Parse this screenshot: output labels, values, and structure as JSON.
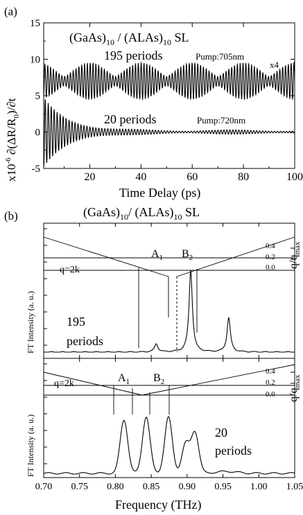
{
  "chart_data": [
    {
      "panel": "(a)",
      "type": "line",
      "title": "(GaAs)10 / (ALAs)10 SL",
      "xlabel": "Time Delay (ps)",
      "ylabel": "x10^-6 ∂(ΔR/R0)/∂t",
      "xlim": [
        2,
        100
      ],
      "ylim": [
        -5,
        15
      ],
      "xticks": [
        20,
        40,
        60,
        80,
        100
      ],
      "yticks": [
        -5,
        0,
        5,
        10,
        15
      ],
      "series": [
        {
          "name": "195 periods",
          "annotation": "Pump:705nm",
          "scale_note": "x4",
          "offset": 7,
          "description": "oscillation around +7 with beating envelope maxima near 20, 40, 60, 80 ps",
          "envelope_maxima_ps": [
            4,
            20,
            40,
            60,
            80,
            100
          ],
          "amplitude_max": 2.5
        },
        {
          "name": "20 periods",
          "annotation": "Pump:720nm",
          "offset": 0,
          "description": "decaying oscillation around 0, amplitude ~4.5 at t=2 ps decaying to ~0.2 after 60 ps",
          "amplitude_start": 4.5,
          "amplitude_end": 0.2
        }
      ]
    },
    {
      "panel": "(b)",
      "type": "line",
      "title": "(GaAs)10/ (ALAs)10 SL",
      "xlabel": "Frequency (THz)",
      "ylabel": "FT Intensity (a. u.)",
      "y2label": "q/qmax",
      "xlim": [
        0.7,
        1.05
      ],
      "xticks": [
        0.7,
        0.75,
        0.8,
        0.85,
        0.9,
        0.95,
        1.0,
        1.05
      ],
      "y2ticks": [
        0.0,
        0.2,
        0.4
      ],
      "labels": [
        "A1",
        "B2",
        "q=2k"
      ],
      "series": [
        {
          "name": "195 periods",
          "peaks_THz": [
            {
              "x": 0.857,
              "height": 0.1
            },
            {
              "x": 0.905,
              "height": 1.0
            },
            {
              "x": 0.958,
              "height": 0.42
            }
          ],
          "marker_dashed_THz": 0.915
        },
        {
          "name": "20 periods",
          "peaks_THz": [
            {
              "x": 0.812,
              "height": 0.82
            },
            {
              "x": 0.843,
              "height": 0.87
            },
            {
              "x": 0.874,
              "height": 0.86
            },
            {
              "x": 0.898,
              "height": 0.45
            },
            {
              "x": 0.911,
              "height": 0.63
            }
          ]
        }
      ]
    }
  ],
  "text": {
    "panel_a": "(a)",
    "panel_b": "(b)",
    "title_a": "(GaAs)",
    "title_a_sub1": "10",
    "title_a_mid": " / (ALAs)",
    "title_a_sub2": "10",
    "title_a_end": " SL",
    "s195": "195 periods",
    "pump1": "Pump:705nm",
    "x4": "x4",
    "s20": "20 periods",
    "pump2": "Pump:720nm",
    "xlabel_a": "Time Delay (ps)",
    "ylabel_a": "x10",
    "ylabel_a_exp": "-6",
    "ylabel_a_rest": " ∂(ΔR/R",
    "ylabel_a_sub": "0",
    "ylabel_a_end": ")/∂t",
    "title_b": "(GaAs)",
    "title_b_sub1": "10",
    "title_b_mid": "/ (ALAs)",
    "title_b_sub2": "10",
    "title_b_end": " SL",
    "ylabel_b": "FT Intensity (a. u.)",
    "y2_q": "q/q",
    "y2_sub": "max",
    "A": "A",
    "A_sub": "1",
    "B": "B",
    "B_sub": "2",
    "q2k": "q=2k",
    "b195_line1": "195",
    "b195_line2": "periods",
    "b20_line1": "20",
    "b20_line2": "periods",
    "xlabel_b": "Frequency (THz)"
  }
}
